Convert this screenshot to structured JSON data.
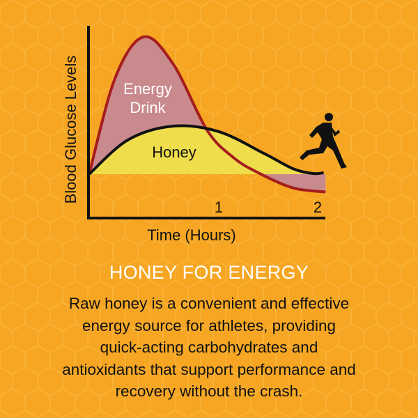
{
  "colors": {
    "background": "#f6a623",
    "energy_drink_line": "#a51d1d",
    "energy_drink_fill": "#c98a8e",
    "honey_line": "#111111",
    "honey_fill": "#f0dd4c",
    "heading": "#ffffff"
  },
  "chart_data": {
    "type": "area",
    "title": "",
    "xlabel": "Time (Hours)",
    "ylabel": "Blood Glucose Levels",
    "xticks": [
      "1",
      "2"
    ],
    "xtick_values": [
      1,
      2
    ],
    "xlim": [
      0,
      2.1
    ],
    "grid": false,
    "decoration": "runner-silhouette-icon",
    "series": [
      {
        "name": "Energy Drink",
        "x": [
          0,
          0.2,
          0.42,
          0.65,
          0.91,
          1.15,
          1.4,
          1.75,
          2.08
        ],
        "values": [
          0,
          0.7,
          1.0,
          0.8,
          0.32,
          0.12,
          0.01,
          -0.1,
          -0.13
        ]
      },
      {
        "name": "Honey",
        "x": [
          0,
          0.3,
          0.65,
          1.0,
          1.46,
          1.75,
          1.95,
          2.06
        ],
        "values": [
          0,
          0.25,
          0.35,
          0.31,
          0.15,
          0.04,
          0.005,
          0.01
        ]
      }
    ]
  },
  "text": {
    "heading": "HONEY FOR ENERGY",
    "body_lines": [
      "Raw honey is a convenient and effective",
      "energy source for athletes, providing",
      "quick-acting carbohydrates and",
      "antioxidants that support performance and",
      "recovery without the crash."
    ]
  }
}
